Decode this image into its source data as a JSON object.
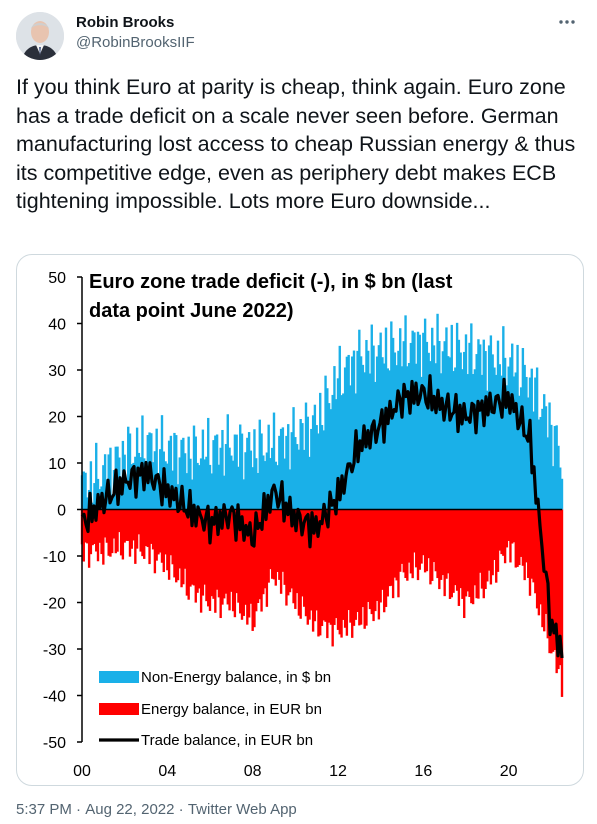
{
  "author": {
    "name": "Robin Brooks",
    "handle": "@RobinBrooksIIF"
  },
  "tweet": {
    "text": "If you think Euro at parity is cheap, think again. Euro zone has a trade deficit on a scale never seen before. German manufacturing lost access to cheap Russian energy & thus its competitive edge, even as periphery debt makes ECB tightening impossible. Lots more Euro downside...",
    "time": "5:37 PM",
    "date": "Aug 22, 2022",
    "source": "Twitter Web App",
    "separator": "·"
  },
  "icons": {
    "more": "more-horizontal-icon"
  },
  "chart_data": {
    "type": "area",
    "title": "Euro zone trade deficit (-), in $ bn (last data point June 2022)",
    "title_lines": [
      "Euro zone trade deficit (-), in $ bn (last",
      "data point June 2022)"
    ],
    "ylim": [
      -50,
      50
    ],
    "yticks": [
      50,
      40,
      30,
      20,
      10,
      0,
      -10,
      -20,
      -30,
      -40,
      -50
    ],
    "xlim": [
      2000,
      2022.5
    ],
    "xticks": [
      {
        "value": 2000,
        "label": "00"
      },
      {
        "value": 2004,
        "label": "04"
      },
      {
        "value": 2008,
        "label": "08"
      },
      {
        "value": 2012,
        "label": "12"
      },
      {
        "value": 2016,
        "label": "16"
      },
      {
        "value": 2020,
        "label": "20"
      }
    ],
    "legend_position": "bottom-left",
    "colors": {
      "non_energy": "#1ab0e8",
      "energy": "#ff0000",
      "trade": "#000000"
    },
    "series": [
      {
        "name": "Non-Energy balance, in $ bn",
        "x": [
          2000,
          2001,
          2002,
          2003,
          2004,
          2005,
          2006,
          2007,
          2008,
          2009,
          2010,
          2011,
          2012,
          2013,
          2014,
          2015,
          2016,
          2017,
          2018,
          2019,
          2020,
          2021,
          2022,
          2022.5
        ],
        "values": [
          5,
          8,
          12,
          14,
          13,
          12,
          13,
          14,
          13,
          14,
          16,
          19,
          28,
          33,
          34,
          35,
          36,
          35,
          34,
          33,
          32,
          28,
          18,
          10
        ]
      },
      {
        "name": "Energy balance, in EUR bn",
        "x": [
          2000,
          2001,
          2002,
          2003,
          2004,
          2005,
          2006,
          2007,
          2008,
          2009,
          2010,
          2011,
          2012,
          2013,
          2014,
          2015,
          2016,
          2017,
          2018,
          2019,
          2020,
          2021,
          2022,
          2022.5
        ],
        "values": [
          -9,
          -9,
          -8,
          -9,
          -12,
          -17,
          -20,
          -20,
          -24,
          -14,
          -20,
          -25,
          -26,
          -24,
          -21,
          -14,
          -12,
          -16,
          -20,
          -16,
          -8,
          -15,
          -30,
          -37
        ]
      },
      {
        "name": "Trade balance, in EUR bn",
        "x": [
          2000,
          2001,
          2002,
          2003,
          2004,
          2005,
          2006,
          2007,
          2008,
          2009,
          2010,
          2011,
          2012,
          2013,
          2014,
          2015,
          2016,
          2017,
          2018,
          2019,
          2020,
          2021,
          2022,
          2022.5
        ],
        "values": [
          -3,
          2,
          6,
          8,
          4,
          0,
          -3,
          -1,
          -6,
          4,
          -2,
          -4,
          3,
          14,
          18,
          24,
          25,
          22,
          20,
          22,
          24,
          15,
          -25,
          -30
        ]
      }
    ]
  }
}
